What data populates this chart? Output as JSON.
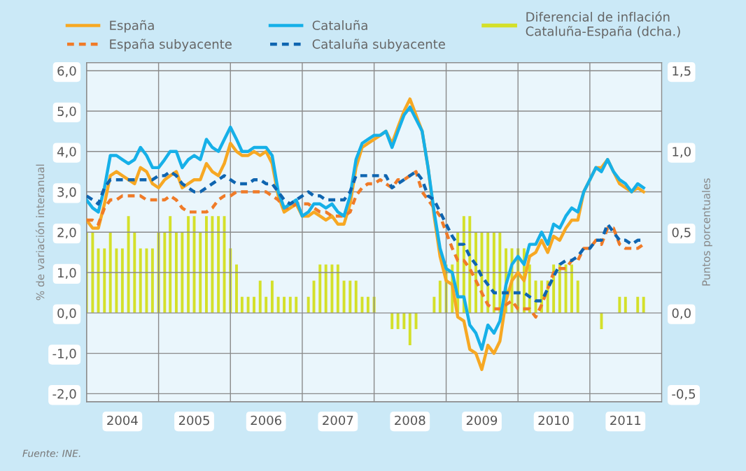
{
  "chart_data": {
    "type": "line",
    "x": [
      "2004-01",
      "2004-02",
      "2004-03",
      "2004-04",
      "2004-05",
      "2004-06",
      "2004-07",
      "2004-08",
      "2004-09",
      "2004-10",
      "2004-11",
      "2004-12",
      "2005-01",
      "2005-02",
      "2005-03",
      "2005-04",
      "2005-05",
      "2005-06",
      "2005-07",
      "2005-08",
      "2005-09",
      "2005-10",
      "2005-11",
      "2005-12",
      "2006-01",
      "2006-02",
      "2006-03",
      "2006-04",
      "2006-05",
      "2006-06",
      "2006-07",
      "2006-08",
      "2006-09",
      "2006-10",
      "2006-11",
      "2006-12",
      "2007-01",
      "2007-02",
      "2007-03",
      "2007-04",
      "2007-05",
      "2007-06",
      "2007-07",
      "2007-08",
      "2007-09",
      "2007-10",
      "2007-11",
      "2007-12",
      "2008-01",
      "2008-02",
      "2008-03",
      "2008-04",
      "2008-05",
      "2008-06",
      "2008-07",
      "2008-08",
      "2008-09",
      "2008-10",
      "2008-11",
      "2008-12",
      "2009-01",
      "2009-02",
      "2009-03",
      "2009-04",
      "2009-05",
      "2009-06",
      "2009-07",
      "2009-08",
      "2009-09",
      "2009-10",
      "2009-11",
      "2009-12",
      "2010-01",
      "2010-02",
      "2010-03",
      "2010-04",
      "2010-05",
      "2010-06",
      "2010-07",
      "2010-08",
      "2010-09",
      "2010-10",
      "2010-11",
      "2010-12",
      "2011-01",
      "2011-02",
      "2011-03",
      "2011-04",
      "2011-05",
      "2011-06",
      "2011-07",
      "2011-08",
      "2011-09",
      "2011-10"
    ],
    "series": [
      {
        "name": "España",
        "color": "#f7a823",
        "line_style": "solid",
        "values": [
          2.3,
          2.1,
          2.1,
          2.7,
          3.4,
          3.5,
          3.4,
          3.3,
          3.2,
          3.6,
          3.5,
          3.2,
          3.1,
          3.3,
          3.4,
          3.5,
          3.1,
          3.2,
          3.3,
          3.3,
          3.7,
          3.5,
          3.4,
          3.7,
          4.2,
          4.0,
          3.9,
          3.9,
          4.0,
          3.9,
          4.0,
          3.7,
          2.9,
          2.5,
          2.6,
          2.7,
          2.4,
          2.4,
          2.5,
          2.4,
          2.3,
          2.4,
          2.2,
          2.2,
          2.7,
          3.6,
          4.1,
          4.2,
          4.3,
          4.4,
          4.5,
          4.2,
          4.6,
          5.0,
          5.3,
          4.9,
          4.5,
          3.6,
          2.4,
          1.4,
          0.8,
          0.7,
          -0.1,
          -0.2,
          -0.9,
          -1.0,
          -1.4,
          -0.8,
          -1.0,
          -0.7,
          0.3,
          0.8,
          1.0,
          0.8,
          1.4,
          1.5,
          1.8,
          1.5,
          1.9,
          1.8,
          2.1,
          2.3,
          2.3,
          3.0,
          3.3,
          3.6,
          3.6,
          3.8,
          3.5,
          3.2,
          3.1,
          3.0,
          3.1,
          3.0
        ]
      },
      {
        "name": "España subyacente",
        "color": "#f07b28",
        "line_style": "dashed",
        "values": [
          2.3,
          2.3,
          2.2,
          2.6,
          2.8,
          2.8,
          2.9,
          2.9,
          2.9,
          2.9,
          2.8,
          2.8,
          2.8,
          2.8,
          2.9,
          2.8,
          2.6,
          2.5,
          2.5,
          2.5,
          2.5,
          2.6,
          2.8,
          2.9,
          2.9,
          3.0,
          3.0,
          3.0,
          3.0,
          3.0,
          3.0,
          2.9,
          2.8,
          2.6,
          2.6,
          2.7,
          2.7,
          2.7,
          2.6,
          2.5,
          2.5,
          2.4,
          2.4,
          2.4,
          2.5,
          2.9,
          3.1,
          3.2,
          3.2,
          3.3,
          3.2,
          3.1,
          3.3,
          3.3,
          3.4,
          3.5,
          3.0,
          2.8,
          2.6,
          2.4,
          2.0,
          1.6,
          1.3,
          1.3,
          1.1,
          0.8,
          0.5,
          0.2,
          0.1,
          0.1,
          0.2,
          0.3,
          0.1,
          0.1,
          0.1,
          -0.1,
          0.2,
          0.6,
          1.0,
          1.1,
          1.1,
          1.3,
          1.3,
          1.6,
          1.6,
          1.8,
          1.7,
          2.1,
          2.1,
          1.7,
          1.6,
          1.6,
          1.6,
          1.7
        ]
      },
      {
        "name": "Cataluña",
        "color": "#16b0e8",
        "line_style": "solid",
        "values": [
          2.8,
          2.6,
          2.5,
          3.1,
          3.9,
          3.9,
          3.8,
          3.7,
          3.8,
          4.1,
          3.9,
          3.6,
          3.6,
          3.8,
          4.0,
          4.0,
          3.6,
          3.8,
          3.9,
          3.8,
          4.3,
          4.1,
          4.0,
          4.3,
          4.6,
          4.3,
          4.0,
          4.0,
          4.1,
          4.1,
          4.1,
          3.9,
          3.0,
          2.6,
          2.7,
          2.8,
          2.4,
          2.5,
          2.7,
          2.7,
          2.6,
          2.7,
          2.5,
          2.4,
          2.9,
          3.8,
          4.2,
          4.3,
          4.4,
          4.4,
          4.5,
          4.1,
          4.5,
          4.9,
          5.1,
          4.8,
          4.5,
          3.6,
          2.5,
          1.6,
          1.1,
          1.0,
          0.4,
          0.4,
          -0.3,
          -0.5,
          -0.9,
          -0.3,
          -0.5,
          -0.2,
          0.7,
          1.2,
          1.4,
          1.2,
          1.7,
          1.7,
          2.0,
          1.7,
          2.2,
          2.1,
          2.4,
          2.6,
          2.5,
          3.0,
          3.3,
          3.6,
          3.5,
          3.8,
          3.5,
          3.3,
          3.2,
          3.0,
          3.2,
          3.1
        ]
      },
      {
        "name": "Cataluña subyacente",
        "color": "#0f65b0",
        "line_style": "dashed",
        "values": [
          2.9,
          2.8,
          2.7,
          3.1,
          3.3,
          3.3,
          3.3,
          3.3,
          3.3,
          3.3,
          3.3,
          3.3,
          3.4,
          3.4,
          3.5,
          3.4,
          3.2,
          3.1,
          3.0,
          3.0,
          3.1,
          3.2,
          3.3,
          3.4,
          3.3,
          3.2,
          3.2,
          3.2,
          3.3,
          3.3,
          3.2,
          3.2,
          3.0,
          2.8,
          2.7,
          2.8,
          2.9,
          3.0,
          2.9,
          2.9,
          2.8,
          2.8,
          2.8,
          2.8,
          3.0,
          3.4,
          3.4,
          3.4,
          3.4,
          3.4,
          3.4,
          3.1,
          3.2,
          3.3,
          3.4,
          3.5,
          3.3,
          2.9,
          2.8,
          2.5,
          2.2,
          1.9,
          1.7,
          1.7,
          1.4,
          1.2,
          0.9,
          0.7,
          0.5,
          0.5,
          0.5,
          0.5,
          0.5,
          0.5,
          0.4,
          0.3,
          0.3,
          0.6,
          0.9,
          1.2,
          1.3,
          1.3,
          1.4,
          1.6,
          1.6,
          1.8,
          1.8,
          2.2,
          2.0,
          1.8,
          1.8,
          1.7,
          1.8,
          1.8
        ]
      },
      {
        "name": "Diferencial de inflación\nCataluña-España (dcha.)",
        "type": "bar",
        "axis": "y2",
        "color": "#d4e02a",
        "values": [
          0.5,
          0.5,
          0.4,
          0.4,
          0.5,
          0.4,
          0.4,
          0.6,
          0.5,
          0.4,
          0.4,
          0.4,
          0.5,
          0.5,
          0.6,
          0.5,
          0.5,
          0.6,
          0.6,
          0.5,
          0.6,
          0.6,
          0.6,
          0.6,
          0.4,
          0.3,
          0.1,
          0.1,
          0.1,
          0.2,
          0.1,
          0.2,
          0.1,
          0.1,
          0.1,
          0.1,
          0,
          0.1,
          0.2,
          0.3,
          0.3,
          0.3,
          0.3,
          0.2,
          0.2,
          0.2,
          0.1,
          0.1,
          0.1,
          0,
          0,
          -0.1,
          -0.1,
          -0.1,
          -0.2,
          -0.1,
          0,
          0,
          0.1,
          0.2,
          0.3,
          0.3,
          0.5,
          0.6,
          0.6,
          0.5,
          0.5,
          0.5,
          0.5,
          0.5,
          0.4,
          0.4,
          0.4,
          0.4,
          0.3,
          0.2,
          0.2,
          0.2,
          0.3,
          0.3,
          0.3,
          0.3,
          0.2,
          0,
          0,
          0,
          -0.1,
          0,
          0,
          0.1,
          0.1,
          0,
          0.1,
          0.1
        ]
      }
    ],
    "ylabel": "% de variación interanual",
    "y2label": "Puntos porcentuales",
    "xlim": [
      "2004-01",
      "2012-01"
    ],
    "xticks": [
      {
        "value": "2004-01",
        "label": null
      },
      {
        "value": "2004-07",
        "label": "2004"
      },
      {
        "value": "2005-01",
        "label": null
      },
      {
        "value": "2005-07",
        "label": "2005"
      },
      {
        "value": "2006-01",
        "label": null
      },
      {
        "value": "2006-07",
        "label": "2006"
      },
      {
        "value": "2007-01",
        "label": null
      },
      {
        "value": "2007-07",
        "label": "2007"
      },
      {
        "value": "2008-01",
        "label": null
      },
      {
        "value": "2008-07",
        "label": "2008"
      },
      {
        "value": "2009-01",
        "label": null
      },
      {
        "value": "2009-07",
        "label": "2009"
      },
      {
        "value": "2010-01",
        "label": null
      },
      {
        "value": "2010-07",
        "label": "2010"
      },
      {
        "value": "2011-01",
        "label": null
      },
      {
        "value": "2011-07",
        "label": "2011"
      },
      {
        "value": "2012-01",
        "label": null
      }
    ],
    "ylim": [
      -2.2,
      6.2
    ],
    "yticks": [
      {
        "value": 6,
        "label": "6,0"
      },
      {
        "value": 5,
        "label": "5,0"
      },
      {
        "value": 4,
        "label": "4,0"
      },
      {
        "value": 3,
        "label": "3,0"
      },
      {
        "value": 2,
        "label": "2,0"
      },
      {
        "value": 1,
        "label": "1,0"
      },
      {
        "value": 0,
        "label": "0,0"
      },
      {
        "value": -1,
        "label": "-1,0"
      },
      {
        "value": -2,
        "label": "-2,0"
      }
    ],
    "y2lim": [
      -0.55,
      1.55
    ],
    "y2ticks": [
      {
        "value": 1.5,
        "label": "1,5"
      },
      {
        "value": 1,
        "label": "1,0"
      },
      {
        "value": 0.5,
        "label": "0,5"
      },
      {
        "value": 0,
        "label": "0,0"
      },
      {
        "value": -0.5,
        "label": "-0,5"
      }
    ],
    "grid": true,
    "legend": "top",
    "annotations": [
      "Fuente: INE."
    ]
  }
}
